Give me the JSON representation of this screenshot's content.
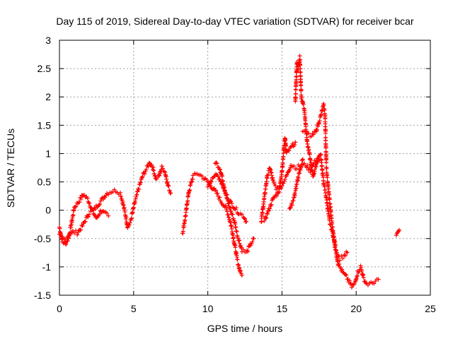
{
  "chart_data": {
    "type": "scatter",
    "title": "Day 115 of 2019, Sidereal Day-to-day VTEC variation (SDTVAR) for receiver bcar",
    "xlabel": "GPS time / hours",
    "ylabel": "SDTVAR / TECUs",
    "xlim": [
      0,
      25
    ],
    "ylim": [
      -1.5,
      3
    ],
    "xticks": [
      "0",
      "5",
      "10",
      "15",
      "20",
      "25"
    ],
    "yticks": [
      "-1.5",
      "-1",
      "-0.5",
      "0",
      "0.5",
      "1",
      "1.5",
      "2",
      "2.5",
      "3"
    ],
    "grid": true,
    "marker": "+",
    "color": "#ff0000",
    "series": [
      {
        "name": "SDTVAR",
        "tracks": [
          [
            [
              0.0,
              -0.3
            ],
            [
              0.2,
              -0.55
            ],
            [
              0.4,
              -0.6
            ],
            [
              0.6,
              -0.5
            ],
            [
              0.8,
              -0.25
            ],
            [
              1.0,
              0.05
            ],
            [
              1.3,
              0.15
            ],
            [
              1.6,
              0.28
            ],
            [
              1.9,
              0.2
            ],
            [
              2.2,
              0.0
            ],
            [
              2.5,
              -0.15
            ],
            [
              2.8,
              0.0
            ],
            [
              3.0,
              -0.05
            ],
            [
              3.3,
              -0.1
            ]
          ],
          [
            [
              0.0,
              -0.45
            ],
            [
              0.3,
              -0.5
            ],
            [
              0.6,
              -0.45
            ],
            [
              0.9,
              -0.38
            ],
            [
              1.2,
              -0.4
            ],
            [
              1.5,
              -0.3
            ],
            [
              1.8,
              -0.15
            ],
            [
              2.0,
              -0.05
            ],
            [
              2.3,
              0.0
            ],
            [
              2.6,
              0.1
            ],
            [
              2.9,
              0.2
            ],
            [
              3.2,
              0.3
            ],
            [
              3.5,
              0.33
            ],
            [
              3.8,
              0.35
            ],
            [
              4.1,
              0.3
            ],
            [
              4.3,
              0.1
            ],
            [
              4.5,
              -0.15
            ],
            [
              4.6,
              -0.3
            ],
            [
              4.8,
              -0.2
            ],
            [
              5.0,
              0.05
            ],
            [
              5.3,
              0.35
            ],
            [
              5.6,
              0.6
            ],
            [
              5.9,
              0.75
            ],
            [
              6.1,
              0.85
            ],
            [
              6.3,
              0.75
            ],
            [
              6.5,
              0.55
            ],
            [
              6.7,
              0.6
            ],
            [
              6.9,
              0.75
            ],
            [
              7.1,
              0.7
            ],
            [
              7.3,
              0.45
            ],
            [
              7.5,
              0.3
            ]
          ],
          [
            [
              8.3,
              -0.4
            ],
            [
              8.5,
              -0.1
            ],
            [
              8.7,
              0.3
            ],
            [
              9.0,
              0.6
            ],
            [
              9.3,
              0.65
            ],
            [
              9.6,
              0.6
            ],
            [
              10.0,
              0.5
            ],
            [
              10.3,
              0.4
            ],
            [
              10.6,
              0.3
            ],
            [
              10.9,
              0.15
            ],
            [
              11.2,
              0.05
            ],
            [
              11.4,
              -0.1
            ],
            [
              11.6,
              -0.3
            ],
            [
              11.8,
              -0.6
            ],
            [
              12.0,
              -0.9
            ],
            [
              12.2,
              -1.1
            ],
            [
              12.3,
              -1.15
            ]
          ],
          [
            [
              10.5,
              0.85
            ],
            [
              10.8,
              0.75
            ],
            [
              11.0,
              0.55
            ],
            [
              11.2,
              0.3
            ],
            [
              11.4,
              0.1
            ],
            [
              11.6,
              -0.05
            ],
            [
              11.8,
              -0.2
            ],
            [
              12.0,
              -0.45
            ],
            [
              12.3,
              -0.7
            ],
            [
              12.6,
              -0.75
            ],
            [
              12.9,
              -0.6
            ],
            [
              13.1,
              -0.5
            ]
          ],
          [
            [
              10.0,
              0.4
            ],
            [
              10.3,
              0.55
            ],
            [
              10.6,
              0.65
            ],
            [
              10.9,
              0.5
            ],
            [
              11.2,
              0.3
            ],
            [
              11.5,
              0.15
            ],
            [
              11.8,
              0.05
            ],
            [
              12.1,
              -0.05
            ],
            [
              12.4,
              -0.1
            ],
            [
              12.6,
              -0.2
            ]
          ],
          [
            [
              13.6,
              -0.2
            ],
            [
              13.8,
              0.2
            ],
            [
              14.0,
              0.6
            ],
            [
              14.2,
              0.75
            ],
            [
              14.4,
              0.5
            ],
            [
              14.6,
              0.4
            ],
            [
              14.8,
              0.35
            ],
            [
              15.0,
              0.7
            ],
            [
              15.2,
              1.3
            ],
            [
              15.3,
              1.0
            ],
            [
              15.6,
              1.1
            ],
            [
              15.9,
              1.2
            ]
          ],
          [
            [
              13.8,
              -0.2
            ],
            [
              14.1,
              0.0
            ],
            [
              14.4,
              0.2
            ],
            [
              14.7,
              0.3
            ],
            [
              15.0,
              0.45
            ],
            [
              15.3,
              0.6
            ],
            [
              15.6,
              0.8
            ],
            [
              16.0,
              0.75
            ],
            [
              16.3,
              0.8
            ],
            [
              16.6,
              0.8
            ],
            [
              16.9,
              0.7
            ],
            [
              17.2,
              0.85
            ],
            [
              17.5,
              0.95
            ]
          ],
          [
            [
              15.9,
              1.9
            ],
            [
              16.0,
              2.6
            ],
            [
              16.1,
              2.5
            ],
            [
              16.2,
              2.7
            ],
            [
              16.3,
              2.0
            ],
            [
              16.5,
              1.8
            ],
            [
              16.7,
              1.2
            ],
            [
              16.9,
              0.9
            ],
            [
              17.1,
              0.6
            ],
            [
              17.3,
              0.8
            ],
            [
              17.6,
              1.0
            ],
            [
              17.8,
              0.5
            ],
            [
              18.0,
              0.2
            ],
            [
              18.2,
              -0.2
            ],
            [
              18.5,
              -0.5
            ],
            [
              18.7,
              -0.75
            ],
            [
              18.9,
              -0.85
            ],
            [
              19.2,
              -0.8
            ],
            [
              19.4,
              -0.75
            ]
          ],
          [
            [
              16.4,
              1.4
            ],
            [
              16.7,
              1.35
            ],
            [
              17.0,
              1.3
            ],
            [
              17.3,
              1.4
            ],
            [
              17.6,
              1.65
            ],
            [
              17.8,
              1.85
            ],
            [
              17.9,
              1.7
            ],
            [
              18.0,
              0.7
            ],
            [
              18.2,
              0.2
            ],
            [
              18.4,
              -0.3
            ],
            [
              18.6,
              -0.7
            ],
            [
              18.8,
              -0.95
            ],
            [
              19.1,
              -1.1
            ],
            [
              19.4,
              -1.2
            ],
            [
              19.7,
              -1.35
            ],
            [
              19.9,
              -1.3
            ],
            [
              20.1,
              -1.1
            ],
            [
              20.3,
              -1.0
            ],
            [
              20.5,
              -1.2
            ],
            [
              20.7,
              -1.3
            ],
            [
              21.0,
              -1.3
            ],
            [
              21.3,
              -1.25
            ],
            [
              21.5,
              -1.22
            ]
          ],
          [
            [
              15.5,
              0.0
            ],
            [
              15.8,
              0.2
            ],
            [
              16.1,
              0.6
            ],
            [
              16.4,
              0.9
            ]
          ],
          [
            [
              22.7,
              -0.45
            ],
            [
              22.9,
              -0.35
            ]
          ]
        ]
      }
    ]
  }
}
